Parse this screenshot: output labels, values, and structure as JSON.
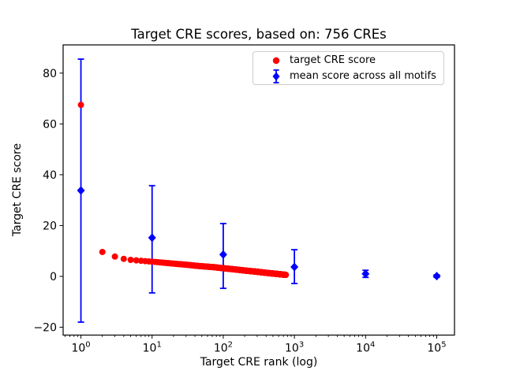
{
  "chart_data": {
    "type": "scatter",
    "title": "Target CRE scores, based on: 756 CREs",
    "xlabel": "Target CRE rank (log)",
    "ylabel": "Target CRE score",
    "x_scale": "log",
    "y_scale": "linear",
    "xlim": [
      0.562,
      177800
    ],
    "ylim": [
      -23.1,
      91.1
    ],
    "x_ticks": [
      1,
      10,
      100,
      1000,
      10000,
      100000
    ],
    "x_tick_base": "10",
    "x_tick_exponents": [
      "0",
      "1",
      "2",
      "3",
      "4",
      "5"
    ],
    "y_ticks": [
      -20,
      0,
      20,
      40,
      60,
      80
    ],
    "y_tick_labels": [
      "−20",
      "0",
      "20",
      "40",
      "60",
      "80"
    ],
    "grid": false,
    "legend_position": "upper right",
    "series": [
      {
        "name": "target CRE score",
        "kind": "scatter",
        "marker": "circle",
        "color": "#ff0000",
        "n_points": 756,
        "note": "dense decreasing band; values sampled from plot, interpolated over ranks 1-756",
        "points_sampled": [
          [
            1,
            67.5
          ],
          [
            2,
            9.6
          ],
          [
            3,
            7.8
          ],
          [
            4,
            6.9
          ],
          [
            5,
            6.5
          ],
          [
            6,
            6.3
          ],
          [
            8,
            6.0
          ],
          [
            10,
            5.8
          ],
          [
            13,
            5.5
          ],
          [
            17,
            5.2
          ],
          [
            22,
            4.9
          ],
          [
            30,
            4.6
          ],
          [
            40,
            4.2
          ],
          [
            55,
            3.9
          ],
          [
            75,
            3.6
          ],
          [
            100,
            3.2
          ],
          [
            140,
            2.8
          ],
          [
            200,
            2.3
          ],
          [
            280,
            1.9
          ],
          [
            400,
            1.4
          ],
          [
            550,
            1.0
          ],
          [
            650,
            0.8
          ],
          [
            756,
            0.6
          ]
        ]
      },
      {
        "name": "mean score across all motifs",
        "kind": "errorbar",
        "marker": "diamond",
        "color": "#0000ff",
        "points": [
          {
            "x": 1,
            "y": 33.8,
            "ylo": -18.0,
            "yhi": 85.5
          },
          {
            "x": 10,
            "y": 15.2,
            "ylo": -6.5,
            "yhi": 35.7
          },
          {
            "x": 100,
            "y": 8.6,
            "ylo": -4.7,
            "yhi": 20.8
          },
          {
            "x": 1000,
            "y": 3.7,
            "ylo": -2.8,
            "yhi": 10.5
          },
          {
            "x": 10000,
            "y": 1.0,
            "ylo": -0.4,
            "yhi": 2.4
          },
          {
            "x": 100000,
            "y": 0.1,
            "ylo": -0.4,
            "yhi": 0.6
          }
        ]
      }
    ],
    "colors": {
      "red_series": "#ff0000",
      "blue_series": "#0000ff",
      "axis": "#000000",
      "legend_border": "#cccccc",
      "background": "#ffffff"
    }
  }
}
